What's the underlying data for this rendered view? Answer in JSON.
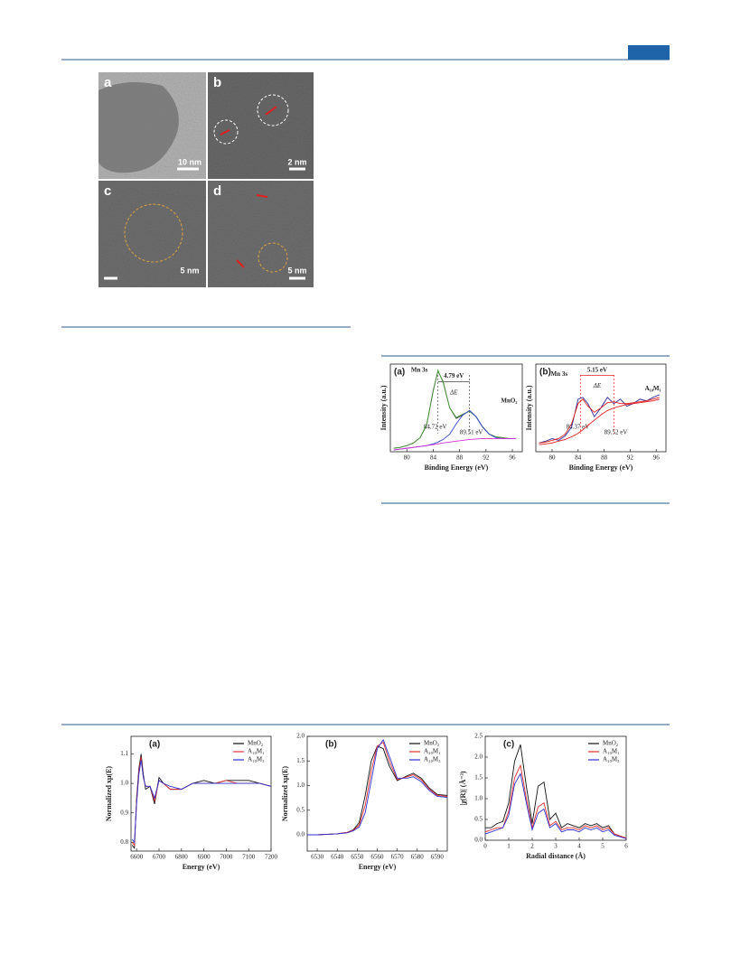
{
  "figure_tem": {
    "panels": [
      {
        "label": "a",
        "scale_bar": "10 nm"
      },
      {
        "label": "b",
        "scale_bar": "2 nm"
      },
      {
        "label": "c",
        "scale_bar": "5 nm"
      },
      {
        "label": "d",
        "scale_bar": "5 nm"
      }
    ]
  },
  "chart_data": [
    {
      "type": "line",
      "title": "(a)",
      "xlabel": "Binding Energy (eV)",
      "ylabel": "Intensity (a.u.)",
      "x": [
        78,
        79,
        80,
        81,
        82,
        83,
        84,
        84.72,
        85.5,
        86.5,
        87.5,
        88.5,
        89.51,
        90.5,
        91.5,
        92.5,
        93.5,
        94.5,
        95.5,
        96.5
      ],
      "series": [
        {
          "color": "#333333",
          "values": [
            0.04,
            0.05,
            0.07,
            0.1,
            0.16,
            0.3,
            0.7,
            0.92,
            0.8,
            0.5,
            0.38,
            0.42,
            0.47,
            0.4,
            0.28,
            0.2,
            0.17,
            0.16,
            0.15,
            0.15
          ]
        },
        {
          "color": "#4a9a3a",
          "values": [
            0.04,
            0.05,
            0.07,
            0.1,
            0.16,
            0.31,
            0.69,
            0.93,
            0.79,
            0.5,
            0.39,
            0.43,
            0.46,
            0.4,
            0.28,
            0.2,
            0.17,
            0.16,
            0.15,
            0.15
          ]
        },
        {
          "color": "#3344cc",
          "values": [
            0.02,
            0.03,
            0.04,
            0.05,
            0.06,
            0.07,
            0.09,
            0.11,
            0.14,
            0.2,
            0.32,
            0.42,
            0.47,
            0.4,
            0.28,
            0.2,
            0.16,
            0.15,
            0.15,
            0.15
          ]
        },
        {
          "color": "#d030d0",
          "values": [
            0.02,
            0.03,
            0.04,
            0.05,
            0.06,
            0.07,
            0.08,
            0.09,
            0.1,
            0.11,
            0.12,
            0.13,
            0.14,
            0.145,
            0.15,
            0.15,
            0.15,
            0.15,
            0.15,
            0.15
          ]
        }
      ],
      "xlim": [
        77.5,
        97.5
      ],
      "ylim": [
        0,
        1
      ],
      "xticks": [
        80,
        84,
        88,
        92,
        96
      ],
      "annotations": [
        "Mn 3s",
        "MnO₂"
      ],
      "annotation_color": "#222222",
      "peaks": [
        {
          "value": 84.72,
          "label": "84.72 eV"
        },
        {
          "value": 89.51,
          "label": "89.51 eV"
        }
      ],
      "peak_color": "#444444",
      "splitting": {
        "value": 4.79,
        "label": "4.79 eV"
      },
      "delta_label": "ΔE"
    },
    {
      "type": "line",
      "title": "(b)",
      "xlabel": "Binding Energy (eV)",
      "ylabel": "Intensity (a.u.)",
      "x": [
        78,
        79,
        80,
        81,
        82,
        83,
        84,
        84.72,
        85.5,
        86.5,
        87.5,
        88.5,
        89.51,
        90.5,
        91.5,
        92.5,
        93.5,
        94.5,
        95.5,
        96.5
      ],
      "series": [
        {
          "color": "#2a2a9a",
          "values": [
            0.1,
            0.12,
            0.15,
            0.13,
            0.18,
            0.28,
            0.6,
            0.62,
            0.55,
            0.4,
            0.5,
            0.62,
            0.55,
            0.6,
            0.52,
            0.55,
            0.6,
            0.58,
            0.62,
            0.65
          ]
        },
        {
          "color": "#e02020",
          "values": [
            0.1,
            0.11,
            0.13,
            0.15,
            0.2,
            0.32,
            0.55,
            0.6,
            0.52,
            0.45,
            0.5,
            0.56,
            0.57,
            0.55,
            0.55,
            0.56,
            0.57,
            0.58,
            0.6,
            0.62
          ]
        },
        {
          "color": "#e02020",
          "values": [
            0.08,
            0.09,
            0.1,
            0.12,
            0.14,
            0.17,
            0.21,
            0.25,
            0.3,
            0.36,
            0.42,
            0.47,
            0.5,
            0.52,
            0.54,
            0.55,
            0.56,
            0.57,
            0.58,
            0.6
          ]
        }
      ],
      "xlim": [
        77.5,
        97.5
      ],
      "ylim": [
        0,
        1
      ],
      "xticks": [
        80,
        84,
        88,
        92,
        96
      ],
      "annotations": [
        "Mn 3s",
        "A₁₀M₁"
      ],
      "annotation_color": "#e02020",
      "peaks": [
        {
          "value": 84.37,
          "label": "84.37 eV"
        },
        {
          "value": 89.52,
          "label": "89.52 eV"
        }
      ],
      "peak_color": "#e02020",
      "splitting": {
        "value": 5.15,
        "label": "5.15 eV"
      },
      "delta_label": "ΔE"
    },
    {
      "type": "line",
      "title": "(a)",
      "xlabel": "Energy (eV)",
      "ylabel": "Normalized xμ(E)",
      "x": [
        6580,
        6590,
        6600,
        6610,
        6620,
        6630,
        6640,
        6660,
        6680,
        6700,
        6720,
        6750,
        6800,
        6850,
        6900,
        6950,
        7000,
        7050,
        7100,
        7150,
        7200
      ],
      "series": [
        {
          "name": "MnO₂",
          "color": "#111111",
          "values": [
            0.79,
            0.78,
            0.95,
            1.05,
            1.1,
            1.03,
            0.98,
            0.99,
            0.93,
            1.02,
            1.0,
            0.98,
            0.98,
            1.0,
            1.01,
            1.0,
            1.01,
            1.01,
            1.01,
            1.0,
            0.99
          ]
        },
        {
          "name": "A₁₀M₁",
          "color": "#e03030",
          "values": [
            0.8,
            0.79,
            0.94,
            1.04,
            1.09,
            1.02,
            0.99,
            0.99,
            0.94,
            1.01,
            1.0,
            0.98,
            0.98,
            1.0,
            1.0,
            1.0,
            1.01,
            1.0,
            1.0,
            1.0,
            0.99
          ]
        },
        {
          "name": "A₁₀M₃",
          "color": "#3030d0",
          "values": [
            0.81,
            0.8,
            0.93,
            1.03,
            1.08,
            1.02,
            0.99,
            0.99,
            0.95,
            1.01,
            1.0,
            0.99,
            0.98,
            1.0,
            1.0,
            1.0,
            1.0,
            1.0,
            1.0,
            1.0,
            0.99
          ]
        }
      ],
      "xlim": [
        6575,
        7200
      ],
      "ylim": [
        0.77,
        1.16
      ],
      "xticks": [
        6600,
        6700,
        6800,
        6900,
        7000,
        7100,
        7200
      ],
      "yticks": [
        0.8,
        0.9,
        {
          "value": 1.0,
          "label": "1.0"
        },
        1.1
      ],
      "legend": "upper right"
    },
    {
      "type": "line",
      "title": "(b)",
      "xlabel": "Energy (eV)",
      "ylabel": "Normalized xμ(E)",
      "x": [
        6525,
        6530,
        6535,
        6540,
        6545,
        6548,
        6551,
        6554,
        6557,
        6560,
        6563,
        6566,
        6570,
        6575,
        6578,
        6582,
        6586,
        6590,
        6595
      ],
      "series": [
        {
          "name": "MnO₂",
          "color": "#111111",
          "values": [
            0,
            0,
            0.01,
            0.02,
            0.05,
            0.1,
            0.25,
            0.8,
            1.5,
            1.8,
            1.75,
            1.4,
            1.1,
            1.2,
            1.25,
            1.15,
            0.95,
            0.82,
            0.8
          ]
        },
        {
          "name": "A₁₀M₁",
          "color": "#e03030",
          "values": [
            0,
            0,
            0.01,
            0.02,
            0.05,
            0.09,
            0.2,
            0.6,
            1.3,
            1.8,
            1.88,
            1.5,
            1.12,
            1.18,
            1.22,
            1.12,
            0.93,
            0.8,
            0.78
          ]
        },
        {
          "name": "A₁₀M₃",
          "color": "#3030d0",
          "values": [
            0,
            0,
            0.01,
            0.02,
            0.04,
            0.08,
            0.16,
            0.45,
            1.1,
            1.75,
            1.93,
            1.6,
            1.15,
            1.15,
            1.18,
            1.08,
            0.9,
            0.78,
            0.76
          ]
        }
      ],
      "xlim": [
        6525,
        6595
      ],
      "ylim": [
        -0.33,
        2.0
      ],
      "xticks": [
        6530,
        6540,
        6550,
        6560,
        6570,
        6580,
        6590
      ],
      "yticks": [
        {
          "value": 0.0,
          "label": "0.0"
        },
        0.5,
        {
          "value": 1.0,
          "label": "1.0"
        },
        1.5,
        {
          "value": 2.0,
          "label": "2.0"
        }
      ],
      "legend": "upper right"
    },
    {
      "type": "line",
      "title": "(c)",
      "xlabel": "Radial distance (Å)",
      "ylabel": "|χ(R)| (Å⁻³)",
      "x": [
        0,
        0.25,
        0.5,
        0.75,
        1,
        1.25,
        1.5,
        1.75,
        2,
        2.25,
        2.5,
        2.75,
        3,
        3.25,
        3.5,
        3.75,
        4,
        4.25,
        4.5,
        4.75,
        5,
        5.25,
        5.5,
        5.75,
        6
      ],
      "series": [
        {
          "name": "MnO₂",
          "color": "#111111",
          "values": [
            0.3,
            0.3,
            0.4,
            0.45,
            0.9,
            1.9,
            2.3,
            1.3,
            0.4,
            1.3,
            1.4,
            0.5,
            0.65,
            0.3,
            0.4,
            0.35,
            0.3,
            0.4,
            0.35,
            0.4,
            0.3,
            0.35,
            0.15,
            0.1,
            0.05
          ]
        },
        {
          "name": "A₁₀M₁",
          "color": "#e03030",
          "values": [
            0.2,
            0.25,
            0.3,
            0.3,
            0.7,
            1.5,
            1.8,
            1.0,
            0.3,
            0.8,
            0.9,
            0.35,
            0.45,
            0.25,
            0.3,
            0.3,
            0.25,
            0.35,
            0.3,
            0.35,
            0.25,
            0.3,
            0.15,
            0.1,
            0.05
          ]
        },
        {
          "name": "A₁₀M₃",
          "color": "#3030d0",
          "values": [
            0.15,
            0.2,
            0.25,
            0.3,
            0.6,
            1.35,
            1.6,
            0.9,
            0.25,
            0.65,
            0.75,
            0.3,
            0.4,
            0.2,
            0.25,
            0.25,
            0.2,
            0.3,
            0.25,
            0.3,
            0.2,
            0.25,
            0.12,
            0.08,
            0.04
          ]
        }
      ],
      "xlim": [
        0,
        6
      ],
      "ylim": [
        0,
        2.5
      ],
      "xticks": [
        0,
        1,
        2,
        3,
        4,
        5,
        6
      ],
      "yticks": [
        {
          "value": 0.0,
          "label": "0.0"
        },
        0.5,
        {
          "value": 1.0,
          "label": "1.0"
        },
        1.5,
        {
          "value": 2.0,
          "label": "2.0"
        },
        2.5
      ],
      "legend": "upper right"
    }
  ]
}
